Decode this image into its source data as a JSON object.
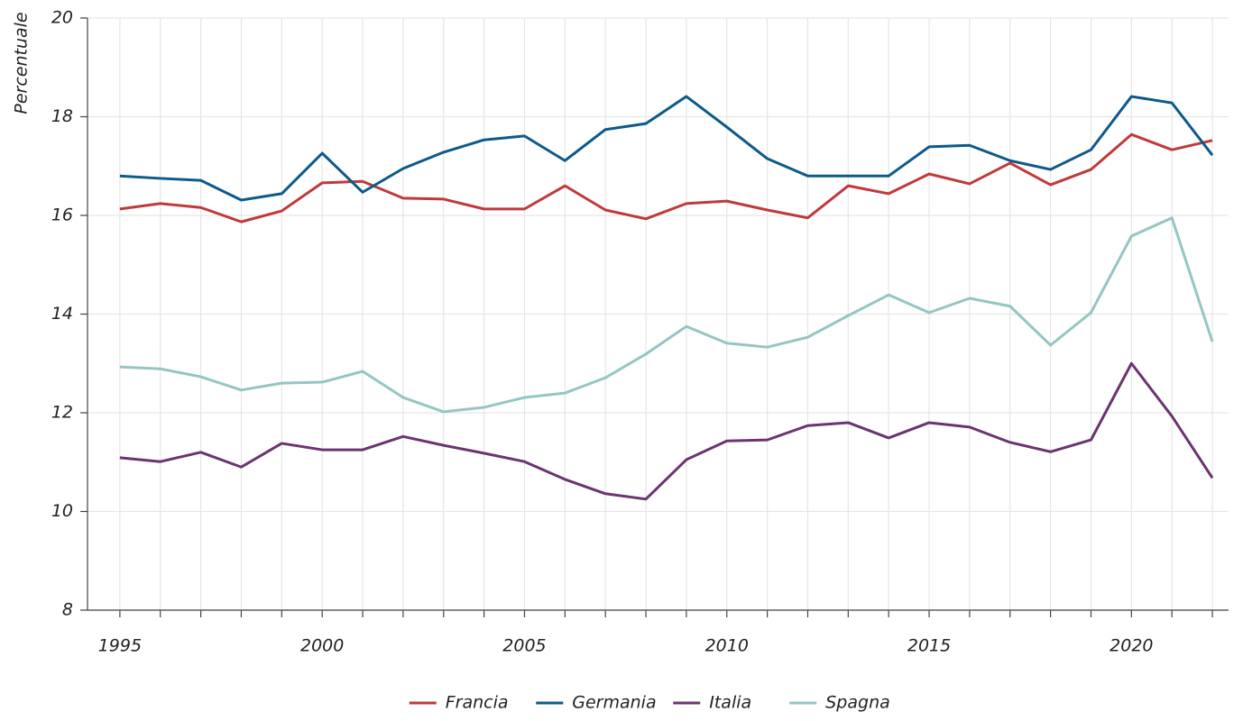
{
  "chart_data": {
    "type": "line",
    "y_label": "Percentuale",
    "x": [
      1995,
      1996,
      1997,
      1998,
      1999,
      2000,
      2001,
      2002,
      2003,
      2004,
      2005,
      2006,
      2007,
      2008,
      2009,
      2010,
      2011,
      2012,
      2013,
      2014,
      2015,
      2016,
      2017,
      2018,
      2019,
      2020,
      2021,
      2022
    ],
    "series": [
      {
        "name": "Francia",
        "color": "#c0393b",
        "values": [
          16.13,
          16.24,
          16.16,
          15.87,
          16.09,
          16.66,
          16.69,
          16.35,
          16.33,
          16.13,
          16.13,
          16.6,
          16.11,
          15.93,
          16.24,
          16.29,
          16.11,
          15.95,
          16.6,
          16.44,
          16.84,
          16.64,
          17.06,
          16.62,
          16.93,
          17.64,
          17.33,
          17.52
        ]
      },
      {
        "name": "Germania",
        "color": "#0d5a8a",
        "values": [
          16.8,
          16.75,
          16.71,
          16.31,
          16.44,
          17.26,
          16.47,
          16.95,
          17.28,
          17.53,
          17.61,
          17.11,
          17.74,
          17.86,
          18.41,
          17.79,
          17.15,
          16.8,
          16.8,
          16.8,
          17.39,
          17.42,
          17.11,
          16.93,
          17.33,
          18.41,
          18.28,
          17.22
        ]
      },
      {
        "name": "Italia",
        "color": "#6b3470",
        "values": [
          11.09,
          11.01,
          11.2,
          10.9,
          11.38,
          11.25,
          11.25,
          11.52,
          11.34,
          11.18,
          11.01,
          10.65,
          10.36,
          10.25,
          11.05,
          11.43,
          11.45,
          11.74,
          11.8,
          11.49,
          11.8,
          11.71,
          11.4,
          11.21,
          11.45,
          13.0,
          11.93,
          10.68
        ]
      },
      {
        "name": "Spagna",
        "color": "#94c6c2",
        "values": [
          12.93,
          12.89,
          12.73,
          12.46,
          12.6,
          12.62,
          12.84,
          12.31,
          12.02,
          12.11,
          12.31,
          12.4,
          12.71,
          13.19,
          13.75,
          13.41,
          13.33,
          13.53,
          13.97,
          14.39,
          14.03,
          14.32,
          14.16,
          13.37,
          14.03,
          15.58,
          15.95,
          13.44
        ]
      }
    ],
    "xlim": [
      1994.2,
      2022.4
    ],
    "xticks": [
      1995,
      2000,
      2005,
      2010,
      2015,
      2020
    ],
    "ylim": [
      8,
      20
    ],
    "yticks": [
      8,
      10,
      12,
      14,
      16,
      18,
      20
    ],
    "grid": true,
    "legend": "bottom"
  }
}
